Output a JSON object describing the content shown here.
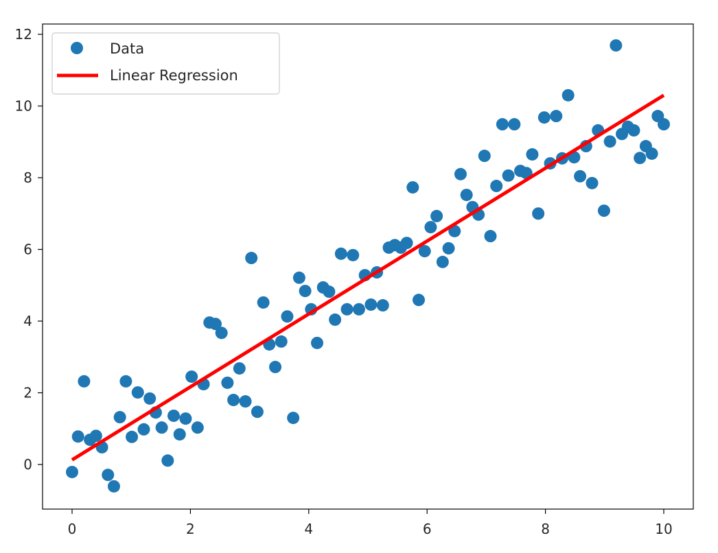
{
  "chart_data": {
    "type": "scatter",
    "title": "",
    "xlabel": "",
    "ylabel": "",
    "xlim": [
      -0.5,
      10.5
    ],
    "ylim": [
      -1.25,
      12.3
    ],
    "xticks": [
      0,
      2,
      4,
      6,
      8,
      10
    ],
    "yticks": [
      0,
      2,
      4,
      6,
      8,
      10,
      12
    ],
    "xtick_labels": [
      "0",
      "2",
      "4",
      "6",
      "8",
      "10"
    ],
    "ytick_labels": [
      "0",
      "2",
      "4",
      "6",
      "8",
      "10",
      "12"
    ],
    "grid": false,
    "legend": {
      "placement": "top-left",
      "entries": [
        "Data",
        "Linear Regression"
      ]
    },
    "series": [
      {
        "name": "Data",
        "kind": "scatter",
        "color": "#1f77b4",
        "x_range": [
          0,
          10
        ],
        "count": 100,
        "y": [
          -0.21,
          0.78,
          2.32,
          0.69,
          0.8,
          0.48,
          -0.29,
          -0.61,
          1.32,
          2.32,
          0.77,
          2.01,
          0.98,
          1.84,
          1.45,
          1.03,
          0.11,
          1.36,
          0.84,
          1.28,
          2.45,
          1.03,
          2.24,
          3.96,
          3.92,
          3.67,
          2.28,
          1.8,
          2.68,
          1.76,
          5.76,
          1.47,
          4.52,
          3.35,
          2.72,
          3.43,
          4.13,
          1.3,
          5.21,
          4.84,
          4.33,
          3.39,
          4.94,
          4.82,
          4.04,
          5.88,
          4.33,
          5.84,
          4.33,
          5.28,
          4.46,
          5.36,
          4.44,
          6.05,
          6.12,
          6.05,
          6.18,
          7.73,
          4.59,
          5.95,
          6.62,
          6.93,
          5.65,
          6.03,
          6.51,
          8.1,
          7.52,
          7.18,
          6.97,
          8.61,
          6.37,
          7.77,
          9.49,
          8.06,
          9.49,
          8.19,
          8.13,
          8.65,
          7.0,
          9.68,
          8.4,
          9.72,
          8.54,
          10.3,
          8.57,
          8.04,
          8.88,
          7.85,
          9.32,
          7.08,
          9.01,
          11.69,
          9.22,
          9.42,
          9.32,
          8.55,
          8.88,
          8.67,
          9.72,
          9.49
        ]
      },
      {
        "name": "Linear Regression",
        "kind": "line",
        "color": "#ff0000",
        "x": [
          0,
          10
        ],
        "y": [
          0.13,
          10.3
        ]
      }
    ]
  }
}
